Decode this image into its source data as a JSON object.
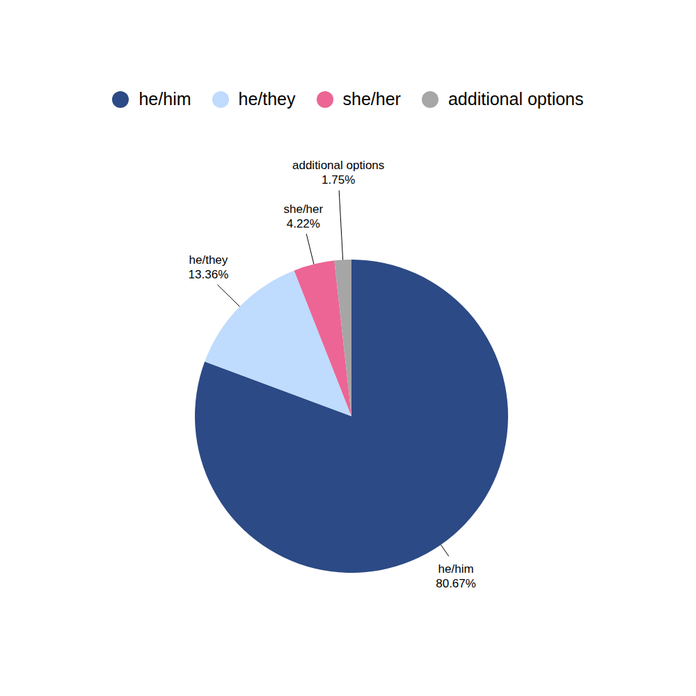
{
  "chart_data": {
    "type": "pie",
    "categories": [
      "he/him",
      "he/they",
      "she/her",
      "additional options"
    ],
    "values": [
      80.67,
      13.36,
      4.22,
      1.75
    ],
    "value_labels": [
      "80.67%",
      "13.36%",
      "4.22%",
      "1.75%"
    ],
    "colors": [
      "#2c4a85",
      "#bfdbfe",
      "#ec6595",
      "#a6a6a6"
    ],
    "legend": "top",
    "data_labels": true
  }
}
